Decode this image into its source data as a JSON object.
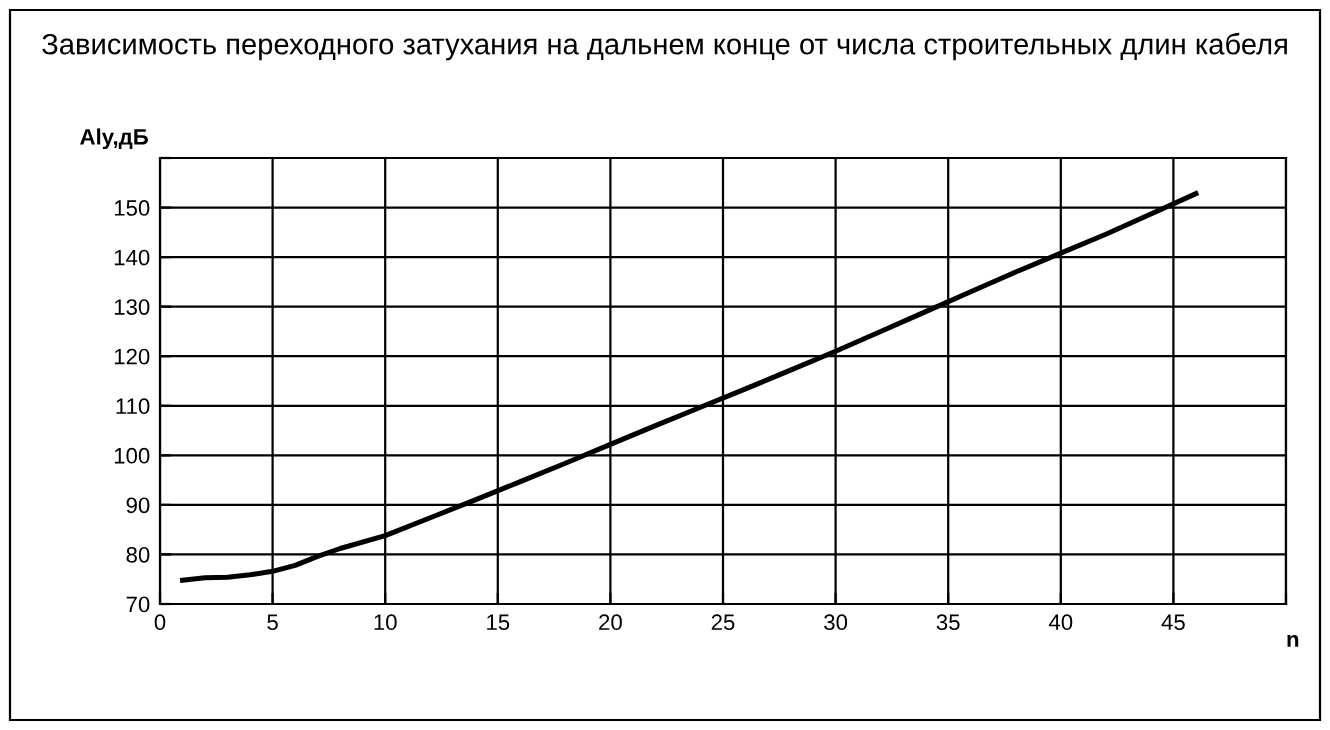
{
  "chart_data": {
    "type": "line",
    "title": "Зависимость переходного затухания на дальнем конце от числа строительных длин кабеля",
    "xlabel": "n",
    "ylabel": "Aly,дБ",
    "series": [
      {
        "color": "#000000",
        "x": [
          1,
          2,
          3,
          4,
          5,
          6,
          7,
          8,
          10,
          12,
          14,
          16,
          18,
          20,
          22,
          24,
          26,
          28,
          30,
          32,
          34,
          36,
          38,
          40,
          42,
          44,
          46
        ],
        "values": [
          74.8,
          75.3,
          75.4,
          75.9,
          76.6,
          77.8,
          79.6,
          81.2,
          83.8,
          87.4,
          91.0,
          94.7,
          98.4,
          102.2,
          106,
          109.7,
          113.4,
          117.2,
          121,
          125,
          129,
          133,
          137,
          140.8,
          144.6,
          148.7,
          152.8
        ]
      }
    ],
    "xlim": [
      0,
      50
    ],
    "xticks": [
      0,
      5,
      10,
      15,
      20,
      25,
      30,
      35,
      40,
      45,
      {
        "value": 50,
        "label": null
      }
    ],
    "ylim": [
      70,
      160
    ],
    "yticks": [
      70,
      80,
      90,
      100,
      110,
      120,
      130,
      140,
      150,
      {
        "value": 160,
        "label": null
      }
    ],
    "grid": true,
    "legend": false,
    "marker": "none",
    "line_style": "solid"
  }
}
